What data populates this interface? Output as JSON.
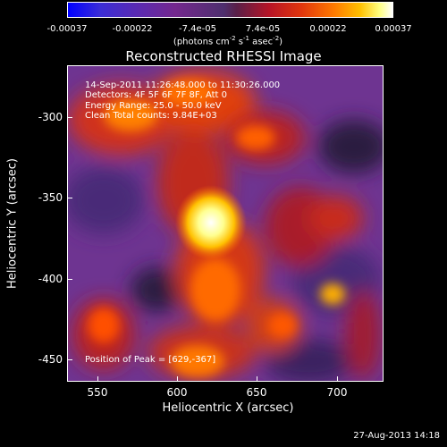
{
  "colorbar": {
    "ticks": [
      "-0.00037",
      "-0.00022",
      "-7.4e-05",
      "7.4e-05",
      "0.00022",
      "0.00037"
    ],
    "units_main": "(photons cm",
    "units_sup1": "-2",
    "units_mid": " s",
    "units_sup2": "-1",
    "units_end": " asec",
    "units_sup3": "-2",
    "units_close": ")"
  },
  "title": "Reconstructed RHESSI Image",
  "info": {
    "time_range": "14-Sep-2011 11:26:48.000 to 11:30:26.000",
    "detectors": "Detectors: 4F 5F 6F 7F 8F, Att 0",
    "energy": "Energy Range: 25.0 - 50.0 keV",
    "method": "Clean     Total counts: 9.84E+03",
    "peak": "Position of Peak = [629,-367]"
  },
  "axes": {
    "xlabel": "Heliocentric X (arcsec)",
    "ylabel": "Heliocentric Y (arcsec)",
    "xticks": [
      "550",
      "600",
      "650",
      "700"
    ],
    "yticks": [
      "-300",
      "-350",
      "-400",
      "-450"
    ]
  },
  "timestamp": "27-Aug-2013 14:18"
}
